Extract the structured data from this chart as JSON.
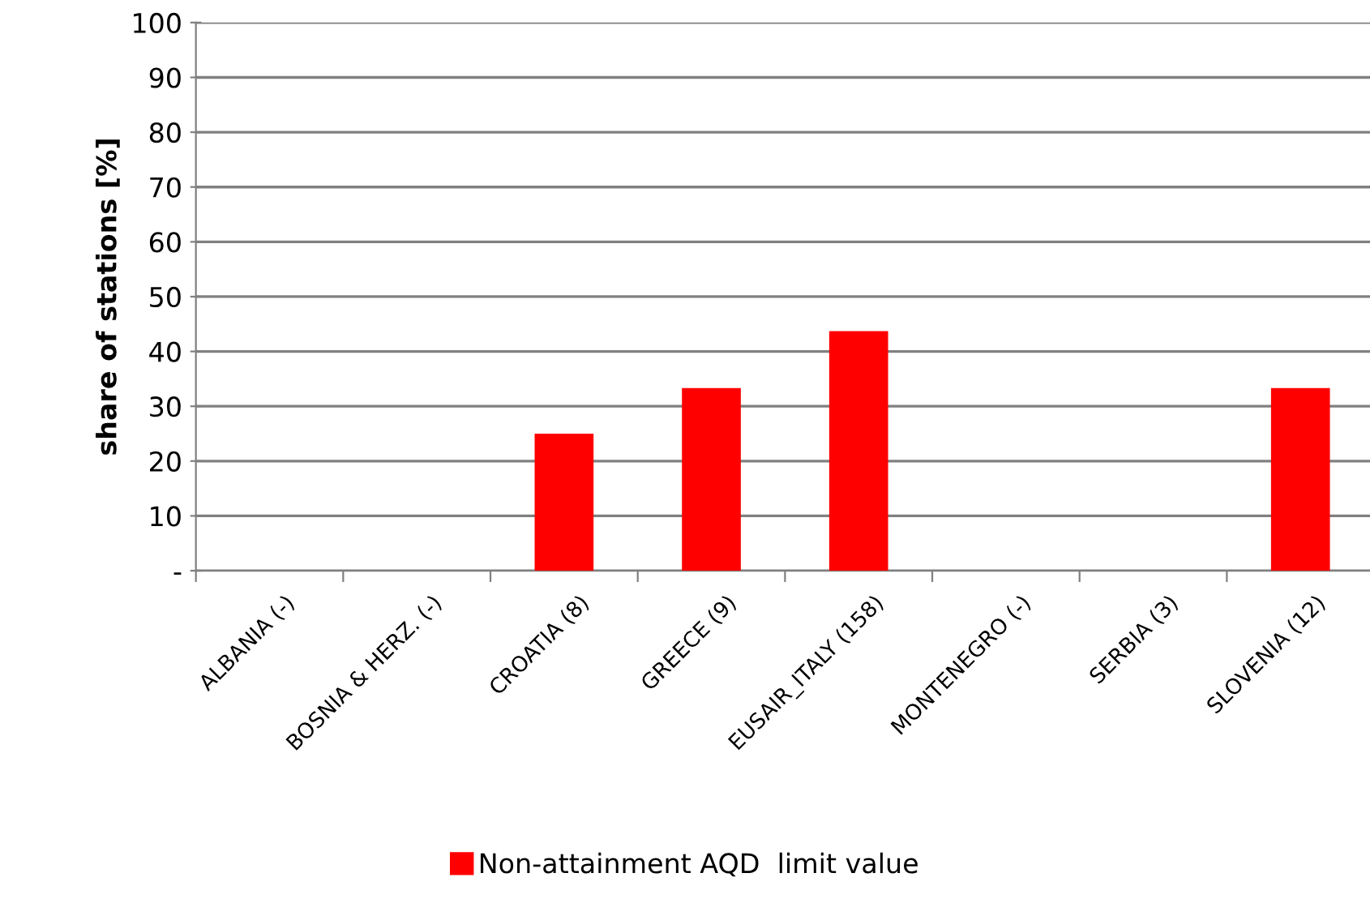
{
  "chart_data": {
    "type": "bar",
    "ylabel": "share of stations [%]",
    "categories": [
      "ALBANIA (-)",
      "BOSNIA & HERZ. (-)",
      "CROATIA (8)",
      "GREECE (9)",
      "EUSAIR_ITALY (158)",
      "MONTENEGRO (-)",
      "SERBIA (3)",
      "SLOVENIA (12)"
    ],
    "series": [
      {
        "name": "Non-attainment AQD  limit value",
        "color": "#ff0000",
        "values": [
          null,
          null,
          25,
          33.3,
          43.7,
          null,
          0,
          33.3
        ]
      }
    ],
    "ylim": [
      0,
      100
    ],
    "yticks": [
      {
        "value": 0,
        "label": "-"
      },
      10,
      20,
      30,
      40,
      50,
      60,
      70,
      80,
      90,
      100
    ],
    "grid": "y",
    "legend": "bottom"
  }
}
